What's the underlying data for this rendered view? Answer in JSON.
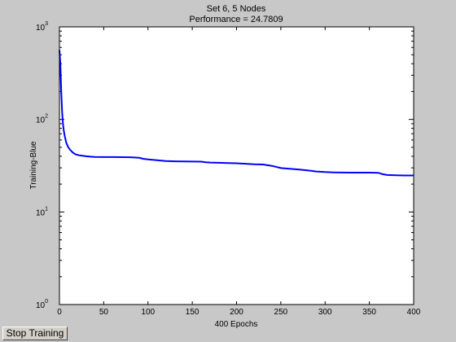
{
  "figure": {
    "background": "#c8c8c8",
    "axes_background": "#ffffff",
    "line_color": "#0000ff"
  },
  "chart_data": {
    "type": "line",
    "title": "Set 6, 5 Nodes",
    "subtitle": "Performance = 24.7809",
    "xlabel": "400 Epochs",
    "ylabel": "Training-Blue",
    "xlim": [
      0,
      400
    ],
    "ylim": [
      1,
      1000
    ],
    "yscale": "log",
    "grid": false,
    "x_ticks": [
      "0",
      "50",
      "100",
      "150",
      "200",
      "250",
      "300",
      "350",
      "400"
    ],
    "y_ticks": [
      {
        "base": "10",
        "exp": "0"
      },
      {
        "base": "10",
        "exp": "1"
      },
      {
        "base": "10",
        "exp": "2"
      },
      {
        "base": "10",
        "exp": "3"
      }
    ],
    "series": [
      {
        "x": [
          0,
          1,
          2,
          3,
          4,
          5,
          6,
          7,
          8,
          10,
          12,
          15,
          18,
          22,
          26,
          30,
          35,
          40,
          50,
          60,
          70,
          80,
          90,
          95,
          100,
          110,
          120,
          130,
          140,
          150,
          160,
          165,
          170,
          180,
          190,
          200,
          210,
          220,
          230,
          240,
          250,
          260,
          270,
          280,
          290,
          300,
          310,
          320,
          330,
          340,
          350,
          360,
          365,
          370,
          380,
          390,
          400
        ],
        "y": [
          560,
          400,
          200,
          120,
          90,
          75,
          66,
          60,
          55,
          50,
          47,
          44,
          42,
          41,
          40.5,
          40,
          39.6,
          39.3,
          39.2,
          39.2,
          39.1,
          39,
          38.5,
          37.5,
          37,
          36.2,
          35.5,
          35.3,
          35.2,
          35.1,
          35,
          34.4,
          34.2,
          34,
          33.8,
          33.6,
          33.2,
          32.8,
          32.6,
          31.5,
          29.8,
          29.3,
          28.8,
          28.2,
          27.4,
          27,
          26.8,
          26.7,
          26.6,
          26.6,
          26.6,
          26.5,
          25.6,
          25.1,
          24.9,
          24.8,
          24.7809
        ]
      }
    ]
  },
  "controls": {
    "stop_button_label": "Stop Training"
  }
}
